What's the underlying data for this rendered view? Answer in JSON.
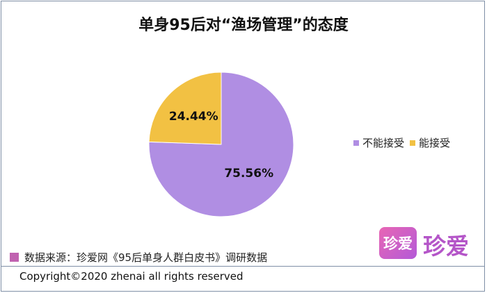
{
  "chart_data": {
    "type": "pie",
    "title": "单身95后对“渔场管理”的态度",
    "slices": [
      {
        "name": "不能接受",
        "value": 75.56,
        "label": "75.56%",
        "color": "#b08ee3"
      },
      {
        "name": "能接受",
        "value": 24.44,
        "label": "24.44%",
        "color": "#f2c143"
      }
    ],
    "legend_position": "right"
  },
  "legend": {
    "items": [
      {
        "label": "不能接受",
        "color": "#b08ee3"
      },
      {
        "label": "能接受",
        "color": "#f2c143"
      }
    ]
  },
  "source_note": "数据来源：珍爱网《95后单身人群白皮书》调研数据",
  "copyright": "Copyright©2020 zhenai all rights reserved",
  "logo": {
    "icon_text": "珍爱",
    "text": "珍爱"
  }
}
